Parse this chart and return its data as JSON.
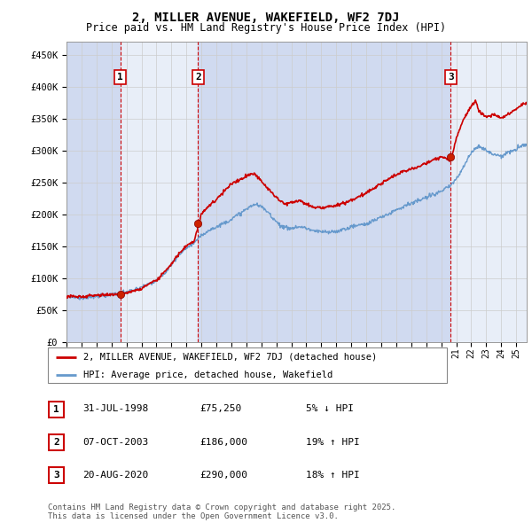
{
  "title": "2, MILLER AVENUE, WAKEFIELD, WF2 7DJ",
  "subtitle": "Price paid vs. HM Land Registry's House Price Index (HPI)",
  "bg_color": "#ffffff",
  "grid_color": "#cccccc",
  "plot_bg": "#e8eef8",
  "plot_bg_alt": "#d0daf0",
  "red_line_color": "#cc0000",
  "blue_line_color": "#6699cc",
  "dashed_line_color": "#cc0000",
  "ylim": [
    0,
    470000
  ],
  "yticks": [
    0,
    50000,
    100000,
    150000,
    200000,
    250000,
    300000,
    350000,
    400000,
    450000
  ],
  "ytick_labels": [
    "£0",
    "£50K",
    "£100K",
    "£150K",
    "£200K",
    "£250K",
    "£300K",
    "£350K",
    "£400K",
    "£450K"
  ],
  "xlim_start": 1995.0,
  "xlim_end": 2025.7,
  "sale_events": [
    {
      "label": "1",
      "date_decimal": 1998.58,
      "price": 75250
    },
    {
      "label": "2",
      "date_decimal": 2003.78,
      "price": 186000
    },
    {
      "label": "3",
      "date_decimal": 2020.64,
      "price": 290000
    }
  ],
  "legend_label_red": "2, MILLER AVENUE, WAKEFIELD, WF2 7DJ (detached house)",
  "legend_label_blue": "HPI: Average price, detached house, Wakefield",
  "footnote": "Contains HM Land Registry data © Crown copyright and database right 2025.\nThis data is licensed under the Open Government Licence v3.0.",
  "table_rows": [
    {
      "num": "1",
      "date": "31-JUL-1998",
      "price": "£75,250",
      "pct": "5% ↓ HPI"
    },
    {
      "num": "2",
      "date": "07-OCT-2003",
      "price": "£186,000",
      "pct": "19% ↑ HPI"
    },
    {
      "num": "3",
      "date": "20-AUG-2020",
      "price": "£290,000",
      "pct": "18% ↑ HPI"
    }
  ],
  "hpi_key": [
    [
      1995.0,
      72000
    ],
    [
      1995.5,
      71000
    ],
    [
      1996.0,
      70000
    ],
    [
      1996.5,
      71500
    ],
    [
      1997.0,
      73000
    ],
    [
      1997.5,
      75000
    ],
    [
      1998.0,
      76000
    ],
    [
      1998.5,
      77500
    ],
    [
      1999.0,
      79000
    ],
    [
      1999.5,
      82000
    ],
    [
      2000.0,
      86000
    ],
    [
      2000.5,
      92000
    ],
    [
      2001.0,
      98000
    ],
    [
      2001.5,
      108000
    ],
    [
      2002.0,
      122000
    ],
    [
      2002.5,
      138000
    ],
    [
      2003.0,
      150000
    ],
    [
      2003.5,
      158000
    ],
    [
      2004.0,
      168000
    ],
    [
      2004.5,
      178000
    ],
    [
      2005.0,
      182000
    ],
    [
      2005.5,
      188000
    ],
    [
      2006.0,
      195000
    ],
    [
      2006.5,
      202000
    ],
    [
      2007.0,
      210000
    ],
    [
      2007.5,
      218000
    ],
    [
      2008.0,
      215000
    ],
    [
      2008.5,
      205000
    ],
    [
      2009.0,
      192000
    ],
    [
      2009.5,
      183000
    ],
    [
      2010.0,
      183000
    ],
    [
      2010.5,
      185000
    ],
    [
      2011.0,
      183000
    ],
    [
      2011.5,
      180000
    ],
    [
      2012.0,
      178000
    ],
    [
      2012.5,
      178000
    ],
    [
      2013.0,
      180000
    ],
    [
      2013.5,
      183000
    ],
    [
      2014.0,
      187000
    ],
    [
      2014.5,
      190000
    ],
    [
      2015.0,
      193000
    ],
    [
      2015.5,
      198000
    ],
    [
      2016.0,
      204000
    ],
    [
      2016.5,
      210000
    ],
    [
      2017.0,
      216000
    ],
    [
      2017.5,
      220000
    ],
    [
      2018.0,
      224000
    ],
    [
      2018.5,
      228000
    ],
    [
      2019.0,
      232000
    ],
    [
      2019.5,
      238000
    ],
    [
      2020.0,
      242000
    ],
    [
      2020.5,
      248000
    ],
    [
      2021.0,
      262000
    ],
    [
      2021.5,
      282000
    ],
    [
      2022.0,
      305000
    ],
    [
      2022.5,
      315000
    ],
    [
      2023.0,
      308000
    ],
    [
      2023.5,
      302000
    ],
    [
      2024.0,
      300000
    ],
    [
      2024.5,
      305000
    ],
    [
      2025.0,
      310000
    ],
    [
      2025.5,
      318000
    ]
  ],
  "red_key": [
    [
      1995.0,
      72000
    ],
    [
      1995.5,
      71500
    ],
    [
      1996.0,
      70500
    ],
    [
      1996.5,
      72000
    ],
    [
      1997.0,
      73500
    ],
    [
      1997.5,
      75500
    ],
    [
      1998.0,
      76500
    ],
    [
      1998.58,
      75250
    ],
    [
      1999.0,
      78000
    ],
    [
      1999.5,
      81000
    ],
    [
      2000.0,
      86000
    ],
    [
      2000.5,
      93000
    ],
    [
      2001.0,
      100000
    ],
    [
      2001.5,
      112000
    ],
    [
      2002.0,
      126000
    ],
    [
      2002.5,
      142000
    ],
    [
      2003.0,
      155000
    ],
    [
      2003.5,
      162000
    ],
    [
      2003.78,
      186000
    ],
    [
      2004.0,
      205000
    ],
    [
      2004.5,
      218000
    ],
    [
      2005.0,
      228000
    ],
    [
      2005.5,
      240000
    ],
    [
      2006.0,
      252000
    ],
    [
      2006.5,
      258000
    ],
    [
      2007.0,
      265000
    ],
    [
      2007.5,
      270000
    ],
    [
      2008.0,
      258000
    ],
    [
      2008.5,
      245000
    ],
    [
      2009.0,
      232000
    ],
    [
      2009.5,
      222000
    ],
    [
      2010.0,
      224000
    ],
    [
      2010.5,
      228000
    ],
    [
      2011.0,
      222000
    ],
    [
      2011.5,
      218000
    ],
    [
      2012.0,
      218000
    ],
    [
      2012.5,
      220000
    ],
    [
      2013.0,
      222000
    ],
    [
      2013.5,
      225000
    ],
    [
      2014.0,
      230000
    ],
    [
      2014.5,
      235000
    ],
    [
      2015.0,
      240000
    ],
    [
      2015.5,
      248000
    ],
    [
      2016.0,
      255000
    ],
    [
      2016.5,
      262000
    ],
    [
      2017.0,
      268000
    ],
    [
      2017.5,
      274000
    ],
    [
      2018.0,
      278000
    ],
    [
      2018.5,
      282000
    ],
    [
      2019.0,
      287000
    ],
    [
      2019.5,
      292000
    ],
    [
      2020.0,
      296000
    ],
    [
      2020.64,
      290000
    ],
    [
      2021.0,
      325000
    ],
    [
      2021.5,
      355000
    ],
    [
      2022.0,
      375000
    ],
    [
      2022.3,
      385000
    ],
    [
      2022.5,
      368000
    ],
    [
      2023.0,
      358000
    ],
    [
      2023.5,
      362000
    ],
    [
      2024.0,
      355000
    ],
    [
      2024.5,
      362000
    ],
    [
      2025.0,
      370000
    ],
    [
      2025.5,
      378000
    ]
  ]
}
